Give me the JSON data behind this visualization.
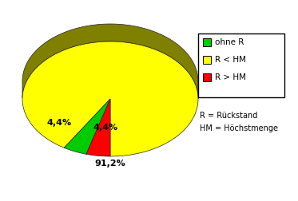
{
  "values": [
    91.2,
    4.4,
    4.4
  ],
  "labels": [
    "91,2%",
    "4,4%",
    "4,4%"
  ],
  "colors": [
    "#ffff00",
    "#00cc00",
    "#ff0000"
  ],
  "side_colors": [
    "#808000",
    "#005500",
    "#880000"
  ],
  "legend_labels": [
    "ohne R",
    "R < HM",
    "R > HM"
  ],
  "legend_colors": [
    "#00cc00",
    "#ffff00",
    "#ff0000"
  ],
  "note_line1": "R = Rückstand",
  "note_line2": "HM = Höchstmenge",
  "background_color": "#ffffff",
  "startangle": -90,
  "label_fontsize": 8,
  "legend_fontsize": 7.5
}
